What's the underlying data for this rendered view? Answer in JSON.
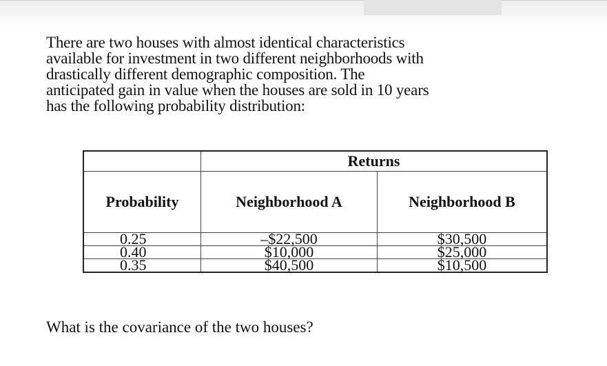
{
  "problem": {
    "intro": "There are two houses with almost identical characteristics\navailable for investment in two different neighborhoods with\ndrastically different demographic composition.  The\nanticipated gain in value when the houses are sold in 10 years\nhas the following probability distribution:",
    "question": "What is the covariance of the two houses?"
  },
  "table": {
    "title": "Returns",
    "headers": [
      "Probability",
      "Neighborhood A",
      "Neighborhood B"
    ],
    "rows": [
      [
        "0.25",
        "–$22,500",
        "$30,500"
      ],
      [
        "0.40",
        "$10,000",
        "$25,000"
      ],
      [
        "0.35",
        "$40,500",
        "$10,500"
      ]
    ]
  }
}
